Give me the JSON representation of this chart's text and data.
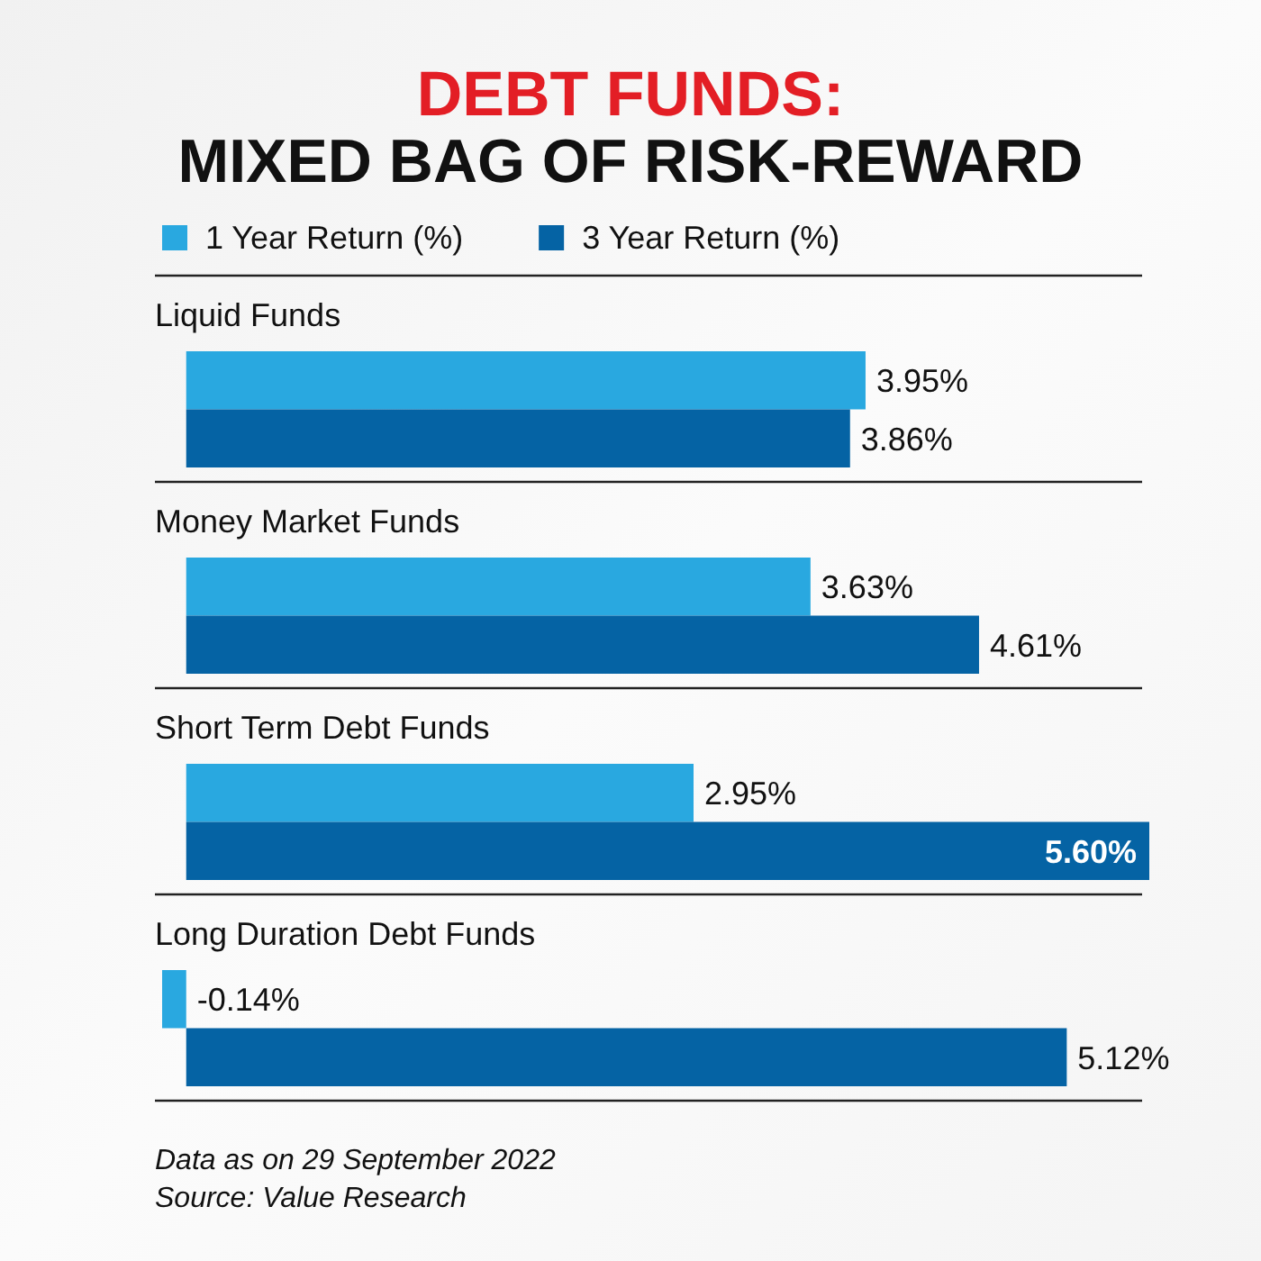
{
  "chart_data": {
    "type": "bar",
    "orientation": "horizontal",
    "title": "DEBT FUNDS:",
    "subtitle": "MIXED BAG OF RISK-REWARD",
    "categories": [
      "Liquid Funds",
      "Money Market Funds",
      "Short Term Debt Funds",
      "Long Duration Debt Funds"
    ],
    "series": [
      {
        "name": "1 Year Return (%)",
        "color": "#29a8e0",
        "values": [
          3.95,
          3.63,
          2.95,
          -0.14
        ],
        "value_labels": [
          "3.95%",
          "3.63%",
          "2.95%",
          "-0.14%"
        ]
      },
      {
        "name": "3 Year Return (%)",
        "color": "#0563a4",
        "values": [
          3.86,
          4.61,
          5.6,
          5.12
        ],
        "value_labels": [
          "3.86%",
          "4.61%",
          "5.60%",
          "5.12%"
        ]
      }
    ],
    "legend": "top left",
    "annotations": [
      "Data as on 29 September 2022",
      "Source: Value Research"
    ]
  }
}
